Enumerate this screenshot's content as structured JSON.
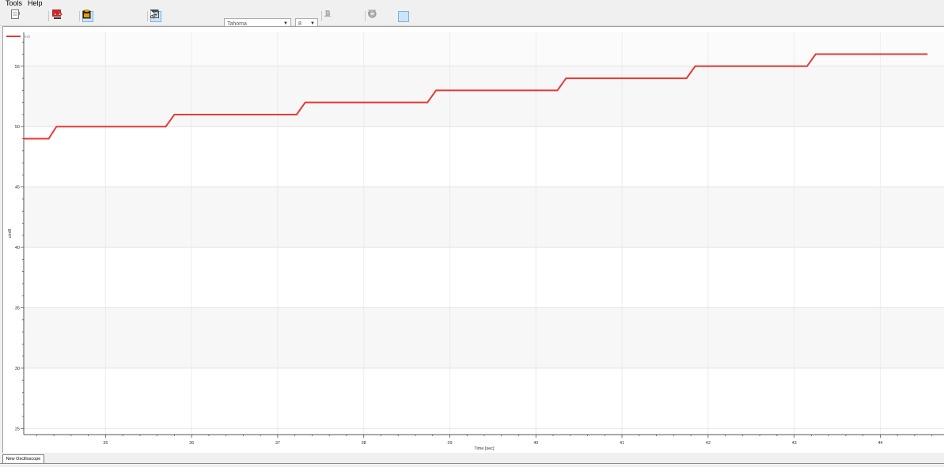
{
  "menu": {
    "items": [
      "Tools",
      "Help"
    ]
  },
  "toolbar": {
    "font_name": "Tahoma",
    "font_size": "8",
    "icons": {
      "g1": [
        "arrow-left-icon",
        "arrow-right-icon",
        "page-icon"
      ],
      "g2": [
        "rec-icon",
        "x-scale-icon"
      ],
      "g3": [
        "zoom-icon",
        "zoom-x-icon",
        "zoom-y-icon",
        "zoom-fit-icon",
        "clipboard-icon"
      ],
      "g4": [
        "grid-icon",
        "arrow-up-icon",
        "arrow-down-icon",
        "properties-icon",
        "help-cursor-icon"
      ],
      "g5": [
        "bold-icon",
        "italic-icon",
        "underline-icon"
      ],
      "g6": [
        "settings-icon",
        "settings-alt-icon",
        "align-left-icon",
        "align-center-icon",
        "align-right-icon"
      ]
    }
  },
  "chart_data": {
    "type": "line",
    "title": "",
    "xlabel": "Time [sec]",
    "ylabel": "uint8",
    "xlim": [
      34.05,
      44.75
    ],
    "ylim": [
      24.5,
      57.8
    ],
    "xticks": [
      35,
      36,
      37,
      38,
      39,
      40,
      41,
      42,
      43,
      44
    ],
    "yticks": [
      25,
      30,
      35,
      40,
      45,
      50,
      55
    ],
    "grid": true,
    "legend": "top-left",
    "series": [
      {
        "name": "test",
        "color": "#e53935",
        "x": [
          34.05,
          34.34,
          34.43,
          35.7,
          35.8,
          37.22,
          37.32,
          38.74,
          38.84,
          40.25,
          40.35,
          41.75,
          41.85,
          43.15,
          43.25,
          44.55
        ],
        "y": [
          49,
          49,
          50,
          50,
          51,
          51,
          52,
          52,
          53,
          53,
          54,
          54,
          55,
          55,
          56,
          56
        ]
      }
    ]
  },
  "tabs": [
    "New Oscilloscope"
  ]
}
